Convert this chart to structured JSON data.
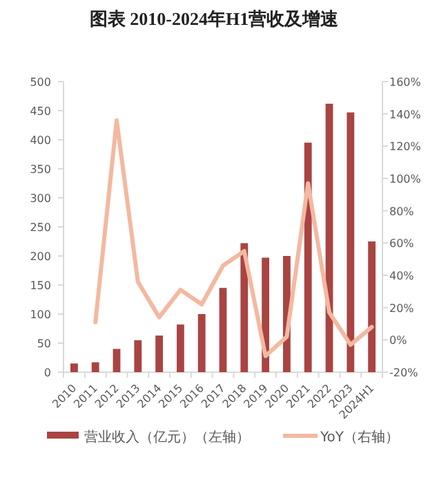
{
  "chart_data": {
    "type": "bar",
    "title": "图表 2010-2024年H1营收及增速",
    "categories": [
      "2010",
      "2011",
      "2012",
      "2013",
      "2014",
      "2015",
      "2016",
      "2017",
      "2018",
      "2019",
      "2020",
      "2021",
      "2022",
      "2023",
      "2024H1"
    ],
    "series": [
      {
        "name": "营业收入（亿元）（左轴）",
        "color": "#a94442",
        "values": [
          15,
          17,
          40,
          55,
          63,
          82,
          100,
          145,
          222,
          197,
          200,
          395,
          462,
          447,
          225
        ]
      },
      {
        "name": "YoY（右轴）",
        "type": "line",
        "axis": "y2",
        "color": "#f4b8a0",
        "values": [
          null,
          11,
          136,
          36,
          14,
          31,
          22,
          46,
          55,
          -10,
          2,
          97,
          17,
          -3,
          8
        ]
      }
    ],
    "ylim": [
      0,
      500
    ],
    "yticks": [
      0,
      50,
      100,
      150,
      200,
      250,
      300,
      350,
      400,
      450,
      500
    ],
    "y2lim": [
      -20,
      160
    ],
    "y2ticks": [
      {
        "value": -20,
        "label": "-20%"
      },
      {
        "value": 0,
        "label": "0%"
      },
      {
        "value": 20,
        "label": "20%"
      },
      {
        "value": 40,
        "label": "40%"
      },
      {
        "value": 60,
        "label": "60%"
      },
      {
        "value": 80,
        "label": "80%"
      },
      {
        "value": 100,
        "label": "100%"
      },
      {
        "value": 120,
        "label": "120%"
      },
      {
        "value": 140,
        "label": "140%"
      },
      {
        "value": 160,
        "label": "160%"
      }
    ],
    "grid": false,
    "legend": "bottom"
  }
}
